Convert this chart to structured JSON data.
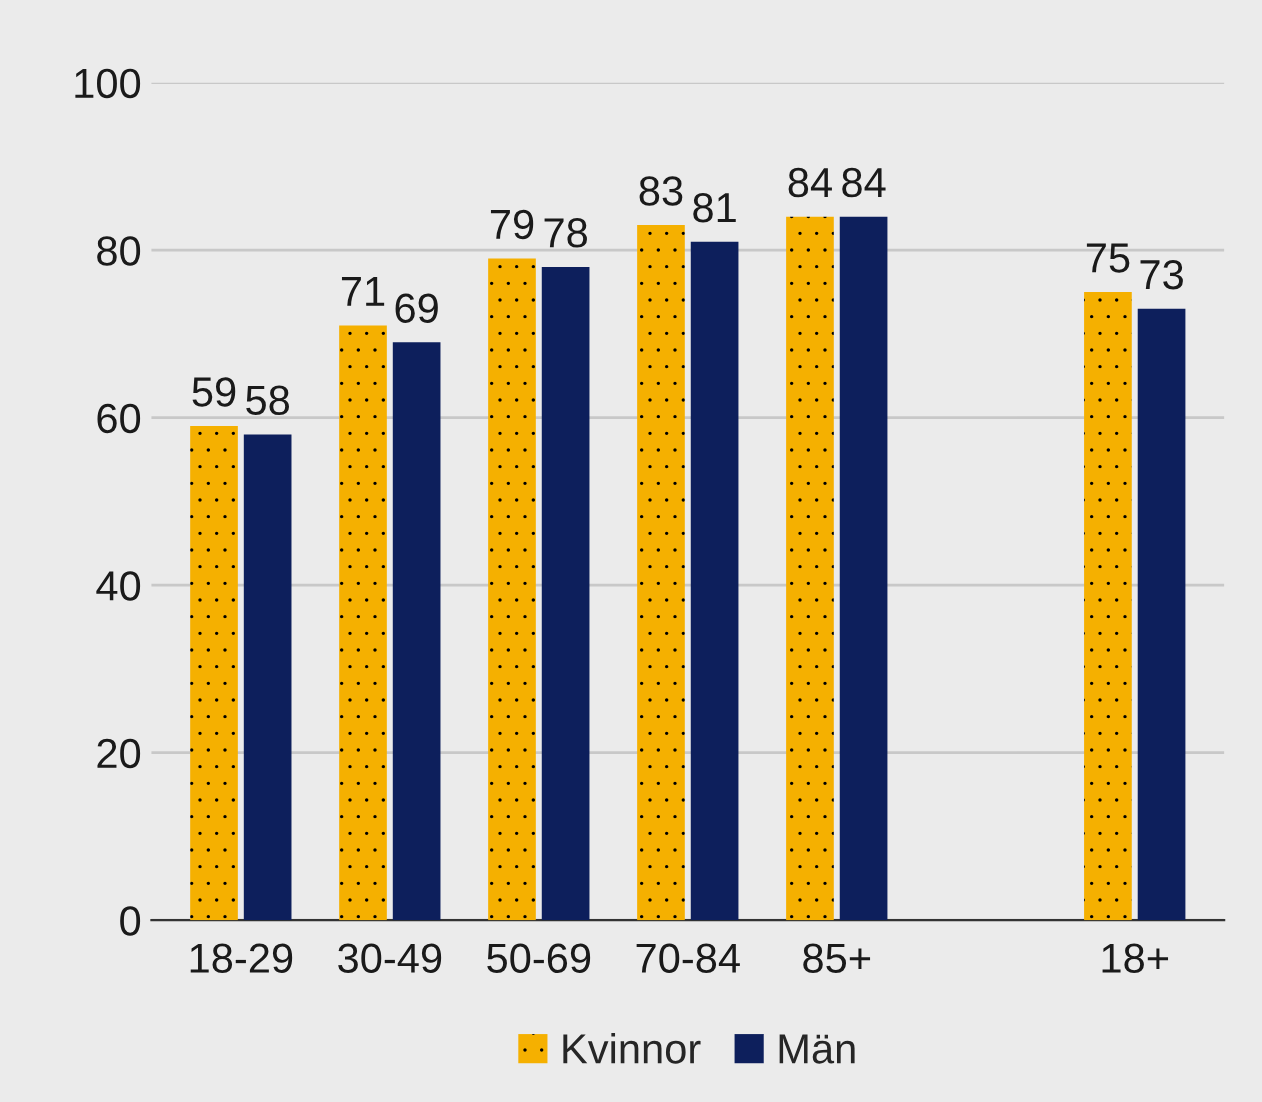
{
  "chart_data": {
    "type": "bar",
    "categories": [
      "18-29",
      "30-49",
      "50-69",
      "70-84",
      "85+",
      null,
      "18+"
    ],
    "series": [
      {
        "name": "Kvinnor",
        "color": "#f5b000",
        "values": [
          59,
          71,
          79,
          83,
          84,
          null,
          75
        ]
      },
      {
        "name": "Män",
        "color": "#0d1f5c",
        "values": [
          58,
          69,
          78,
          81,
          84,
          null,
          73
        ]
      }
    ],
    "ylim": [
      0,
      100
    ],
    "yticks": [
      0,
      20,
      40,
      60,
      80,
      100
    ],
    "grid": "y",
    "legend": "bottom",
    "data_labels": true
  }
}
